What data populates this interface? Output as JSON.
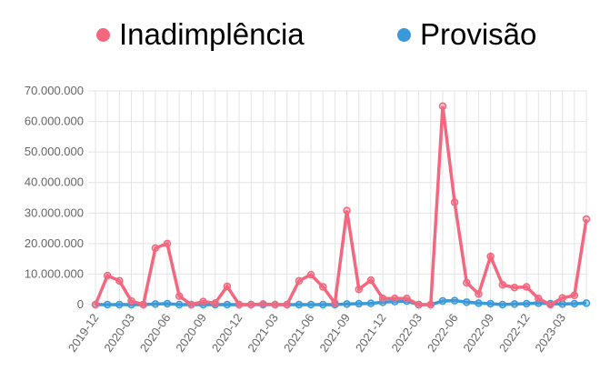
{
  "chart_data": {
    "type": "line",
    "title": "",
    "xlabel": "",
    "ylabel": "",
    "ylim": [
      0,
      70000000
    ],
    "yticks": [
      0,
      10000000,
      20000000,
      30000000,
      40000000,
      50000000,
      60000000,
      70000000
    ],
    "ytick_labels": [
      "0",
      "10.000.000",
      "20.000.000",
      "30.000.000",
      "40.000.000",
      "50.000.000",
      "60.000.000",
      "70.000.000"
    ],
    "grid": true,
    "legend_position": "top",
    "x": [
      "2019-12",
      "2020-01",
      "2020-02",
      "2020-03",
      "2020-04",
      "2020-05",
      "2020-06",
      "2020-07",
      "2020-08",
      "2020-09",
      "2020-10",
      "2020-11",
      "2020-12",
      "2021-01",
      "2021-02",
      "2021-03",
      "2021-04",
      "2021-05",
      "2021-06",
      "2021-07",
      "2021-08",
      "2021-09",
      "2021-10",
      "2021-11",
      "2021-12",
      "2022-01",
      "2022-02",
      "2022-03",
      "2022-04",
      "2022-05",
      "2022-06",
      "2022-07",
      "2022-08",
      "2022-09",
      "2022-10",
      "2022-11",
      "2022-12",
      "2023-01",
      "2023-02",
      "2023-03",
      "2023-04",
      "2023-05"
    ],
    "xtick_labels": [
      "2019-12",
      "2020-03",
      "2020-06",
      "2020-09",
      "2020-12",
      "2021-03",
      "2021-06",
      "2021-09",
      "2021-12",
      "2022-03",
      "2022-06",
      "2022-09",
      "2022-12",
      "2023-03"
    ],
    "series": [
      {
        "name": "Inadimplência",
        "color": "#f4677f",
        "values": [
          0,
          9500000,
          7800000,
          1200000,
          0,
          18500000,
          20000000,
          2800000,
          0,
          1000000,
          500000,
          6000000,
          0,
          0,
          200000,
          0,
          0,
          7800000,
          9800000,
          5800000,
          500000,
          30800000,
          5000000,
          8000000,
          2000000,
          2000000,
          2000000,
          0,
          0,
          65000000,
          33500000,
          7200000,
          3500000,
          15800000,
          6500000,
          5600000,
          5800000,
          2000000,
          0,
          2200000,
          3000000,
          28000000
        ]
      },
      {
        "name": "Provisão",
        "color": "#3a9ad9",
        "values": [
          0,
          0,
          0,
          0,
          0,
          200000,
          300000,
          0,
          0,
          0,
          0,
          0,
          0,
          0,
          0,
          0,
          0,
          0,
          0,
          0,
          0,
          200000,
          300000,
          400000,
          800000,
          1000000,
          1200000,
          0,
          0,
          1200000,
          1300000,
          800000,
          500000,
          300000,
          0,
          200000,
          300000,
          500000,
          300000,
          200000,
          300000,
          500000
        ]
      }
    ]
  },
  "legend": {
    "items": [
      {
        "label": "Inadimplência",
        "color": "#f4677f"
      },
      {
        "label": "Provisão",
        "color": "#3a9ad9"
      }
    ]
  }
}
